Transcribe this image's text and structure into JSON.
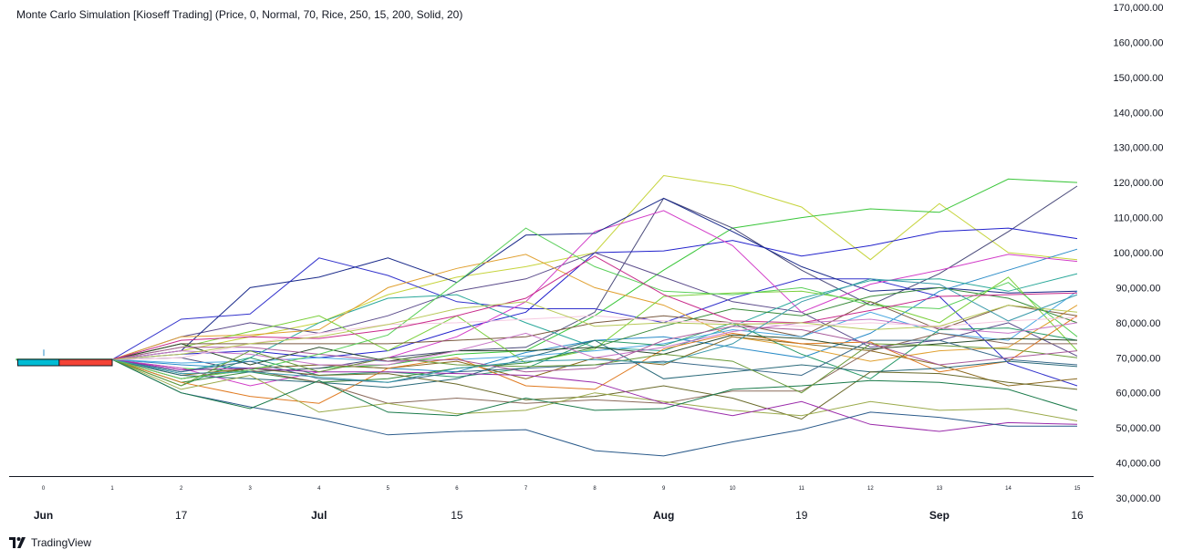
{
  "title": "Monte Carlo Simulation [Kioseff Trading] (Price, 0, Normal, 70, Rice, 250, 15, 200, Solid, 20)",
  "branding": {
    "name": "TradingView",
    "logo_icon": "tradingview-logo-icon"
  },
  "chart_data": {
    "type": "line",
    "title": "Monte Carlo Simulation [Kioseff Trading] (Price, 0, Normal, 70, Rice, 250, 15, 200, Solid, 20)",
    "ylim": [
      30000,
      170000
    ],
    "y_ticks": [
      "170,000.00",
      "160,000.00",
      "150,000.00",
      "140,000.00",
      "130,000.00",
      "120,000.00",
      "110,000.00",
      "100,000.00",
      "90,000.00",
      "80,000.00",
      "70,000.00",
      "60,000.00",
      "50,000.00",
      "40,000.00",
      "30,000.00"
    ],
    "x": [
      0,
      1,
      2,
      3,
      4,
      5,
      6,
      7,
      8,
      9,
      10,
      11,
      12,
      13,
      14,
      15
    ],
    "x_step_labels": [
      "0",
      "1",
      "2",
      "3",
      "4",
      "5",
      "6",
      "7",
      "8",
      "9",
      "10",
      "11",
      "12",
      "13",
      "14",
      "15"
    ],
    "x_date_labels": [
      {
        "x": 0,
        "label": "Jun",
        "bold": true
      },
      {
        "x": 2,
        "label": "17",
        "bold": false
      },
      {
        "x": 4,
        "label": "Jul",
        "bold": true
      },
      {
        "x": 6,
        "label": "15",
        "bold": false
      },
      {
        "x": 9,
        "label": "Aug",
        "bold": true
      },
      {
        "x": 11,
        "label": "19",
        "bold": false
      },
      {
        "x": 13,
        "label": "Sep",
        "bold": true
      },
      {
        "x": 15,
        "label": "16",
        "bold": false
      }
    ],
    "start_value": 69500,
    "markers": [
      {
        "color": "#00bcd4",
        "x0": 0,
        "x1": 0.4,
        "value": 68500
      },
      {
        "color": "#f44336",
        "x0": 0.6,
        "x1": 1.0,
        "value": 68500
      }
    ],
    "grid": false,
    "series": [
      {
        "color": "#c6d43c",
        "values": [
          69500,
          69500,
          72000,
          76000,
          80000,
          88000,
          93000,
          96000,
          100000,
          122000,
          119000,
          113000,
          98000,
          114000,
          100000,
          98000
        ]
      },
      {
        "color": "#3ac63a",
        "values": [
          69500,
          69500,
          67000,
          66000,
          67000,
          68000,
          71000,
          72000,
          82000,
          95000,
          107000,
          110000,
          112500,
          111500,
          121000,
          120000
        ]
      },
      {
        "color": "#4a4a7a",
        "values": [
          69500,
          69500,
          70000,
          66000,
          67000,
          70000,
          72000,
          73000,
          83000,
          115500,
          107000,
          95000,
          85000,
          94000,
          106000,
          119000
        ]
      },
      {
        "color": "#2222cc",
        "values": [
          69500,
          69500,
          71000,
          72000,
          70000,
          72000,
          78000,
          83000,
          100000,
          100500,
          103500,
          99000,
          102000,
          106000,
          107000,
          104000
        ]
      },
      {
        "color": "#3333cc",
        "values": [
          69500,
          69500,
          81000,
          82500,
          98500,
          93500,
          86000,
          84000,
          84000,
          80000,
          87000,
          92500,
          92500,
          87500,
          68500,
          62000
        ]
      },
      {
        "color": "#5a4a8a",
        "values": [
          69500,
          69500,
          76000,
          80000,
          77000,
          82000,
          89000,
          92500,
          100000,
          93000,
          86000,
          83000,
          73000,
          75000,
          80000,
          70500
        ]
      },
      {
        "color": "#2a8cc8",
        "values": [
          69500,
          69500,
          68000,
          67000,
          68000,
          67000,
          66000,
          71500,
          75000,
          76000,
          73000,
          70000,
          77000,
          89000,
          95000,
          101000
        ]
      },
      {
        "color": "#d23cc8",
        "values": [
          69500,
          69500,
          67000,
          62000,
          66000,
          70000,
          76000,
          86000,
          106000,
          112000,
          102000,
          83000,
          91000,
          95000,
          99500,
          97500
        ]
      },
      {
        "color": "#1a2a8a",
        "values": [
          69500,
          69500,
          72000,
          90000,
          93000,
          98500,
          91500,
          105000,
          105500,
          115500,
          106000,
          96000,
          89000,
          90000,
          88500,
          89000
        ]
      },
      {
        "color": "#2aa89a",
        "values": [
          69500,
          69500,
          66000,
          70000,
          80000,
          87000,
          88000,
          80000,
          73000,
          72000,
          79000,
          87000,
          92000,
          92500,
          89000,
          94000
        ]
      },
      {
        "color": "#e0a030",
        "values": [
          69500,
          69500,
          76000,
          76500,
          78000,
          90000,
          95500,
          99500,
          90000,
          85000,
          76000,
          73000,
          69000,
          72000,
          73000,
          85000
        ]
      },
      {
        "color": "#7acf3a",
        "values": [
          69500,
          69500,
          73000,
          77500,
          82000,
          72000,
          82000,
          68500,
          72500,
          87500,
          88500,
          89000,
          86000,
          80000,
          93000,
          72000
        ]
      },
      {
        "color": "#7a5a40",
        "values": [
          69500,
          69500,
          74000,
          74000,
          74000,
          74000,
          75000,
          76000,
          80000,
          82000,
          80000,
          76000,
          86000,
          78000,
          85000,
          82000
        ]
      },
      {
        "color": "#4aa8e0",
        "values": [
          69500,
          69500,
          68500,
          69000,
          70000,
          69000,
          69500,
          70500,
          72000,
          74000,
          78000,
          76000,
          83000,
          77000,
          75000,
          89000
        ]
      },
      {
        "color": "#2a9a6a",
        "values": [
          69500,
          69500,
          62000,
          70000,
          65000,
          66000,
          64500,
          67000,
          75000,
          73500,
          80000,
          71000,
          64000,
          78000,
          78500,
          75000
        ]
      },
      {
        "color": "#3a8a3a",
        "values": [
          69500,
          69500,
          63000,
          66000,
          63000,
          64000,
          67000,
          68500,
          73000,
          79000,
          84000,
          82000,
          87500,
          90000,
          87000,
          80000
        ]
      },
      {
        "color": "#8a6a20",
        "values": [
          69500,
          69500,
          65000,
          67000,
          68000,
          67000,
          69000,
          64000,
          70000,
          68000,
          76000,
          74000,
          72000,
          68000,
          62000,
          64000
        ]
      },
      {
        "color": "#e07a20",
        "values": [
          69500,
          69500,
          63000,
          59000,
          57000,
          67000,
          70000,
          62000,
          61000,
          72500,
          77000,
          74000,
          74500,
          66000,
          69000,
          82000
        ]
      },
      {
        "color": "#2a6a7a",
        "values": [
          69500,
          69500,
          65000,
          64000,
          63000,
          61500,
          64000,
          70000,
          75000,
          64000,
          66000,
          68000,
          66000,
          67000,
          69000,
          67500
        ]
      },
      {
        "color": "#6a6a2a",
        "values": [
          69500,
          69500,
          64000,
          67000,
          65000,
          65500,
          62500,
          58000,
          59000,
          62000,
          58500,
          52500,
          66000,
          65500,
          63000,
          61000
        ]
      },
      {
        "color": "#8a6a5a",
        "values": [
          69500,
          69500,
          64000,
          66500,
          63000,
          57000,
          58500,
          57000,
          58000,
          57000,
          60500,
          60500,
          72000,
          77000,
          74000,
          74000
        ]
      },
      {
        "color": "#9aaa4a",
        "values": [
          69500,
          69500,
          61000,
          65000,
          54500,
          57000,
          54000,
          55000,
          60000,
          57500,
          55000,
          53500,
          57500,
          55000,
          55500,
          52000
        ]
      },
      {
        "color": "#2a4a2a",
        "values": [
          69500,
          69500,
          74000,
          68000,
          73000,
          69000,
          72000,
          72000,
          73000,
          71000,
          76500,
          75500,
          72500,
          74000,
          75500,
          75000
        ]
      },
      {
        "color": "#3a6a8a",
        "values": [
          69500,
          69500,
          66000,
          69000,
          64000,
          63000,
          66000,
          67000,
          68000,
          69000,
          67000,
          65000,
          75000,
          75000,
          69500,
          68000
        ]
      },
      {
        "color": "#9a2aaa",
        "values": [
          69500,
          69500,
          66500,
          67000,
          66000,
          66000,
          65500,
          65000,
          63000,
          57000,
          53500,
          57500,
          51000,
          49000,
          51500,
          51000
        ]
      },
      {
        "color": "#2a5a8a",
        "values": [
          69500,
          69500,
          60000,
          56000,
          52500,
          48000,
          49000,
          49500,
          43500,
          42000,
          46000,
          49500,
          54500,
          53000,
          50500,
          50500
        ]
      },
      {
        "color": "#1a7a4a",
        "values": [
          69500,
          69500,
          60000,
          55500,
          63500,
          54500,
          53500,
          58500,
          55000,
          55500,
          61000,
          62000,
          63500,
          63000,
          61000,
          55000
        ]
      },
      {
        "color": "#c878c8",
        "values": [
          69500,
          69500,
          72000,
          71000,
          68000,
          68000,
          72000,
          77000,
          70000,
          73000,
          77500,
          80000,
          81000,
          78500,
          77000,
          80000
        ]
      },
      {
        "color": "#6a9a3a",
        "values": [
          69500,
          69500,
          62000,
          72000,
          66000,
          70000,
          68000,
          67500,
          68000,
          71000,
          69000,
          60000,
          74000,
          73500,
          72500,
          70000
        ]
      },
      {
        "color": "#a85a9a",
        "values": [
          69500,
          69500,
          73000,
          73000,
          71000,
          69000,
          69500,
          66000,
          67000,
          75000,
          79000,
          78000,
          74000,
          68000,
          70000,
          72000
        ]
      },
      {
        "color": "#5acf5a",
        "values": [
          69500,
          69500,
          64000,
          66500,
          71000,
          76500,
          91500,
          107000,
          96000,
          89000,
          88000,
          90000,
          85000,
          84000,
          91500,
          76000
        ]
      },
      {
        "color": "#f5c8e0",
        "values": [
          69500,
          69500,
          70000,
          74000,
          77000,
          79500,
          80000,
          81000,
          82000,
          80500,
          80000,
          79000,
          80000,
          79000,
          80500,
          81500
        ]
      },
      {
        "color": "#c82a8a",
        "values": [
          69500,
          69500,
          75000,
          76000,
          75500,
          78000,
          82000,
          87000,
          99000,
          88000,
          80500,
          80000,
          83500,
          87500,
          88000,
          88500
        ]
      },
      {
        "color": "#b8c858",
        "values": [
          69500,
          69500,
          71000,
          74000,
          76000,
          79500,
          84000,
          86000,
          79000,
          80000,
          79500,
          80000,
          78000,
          79000,
          85000,
          83000
        ]
      },
      {
        "color": "#3a9aaa",
        "values": [
          69500,
          69500,
          65500,
          66000,
          64500,
          63000,
          67000,
          69000,
          69500,
          68500,
          74000,
          86000,
          92500,
          91000,
          80500,
          88000
        ]
      }
    ]
  }
}
